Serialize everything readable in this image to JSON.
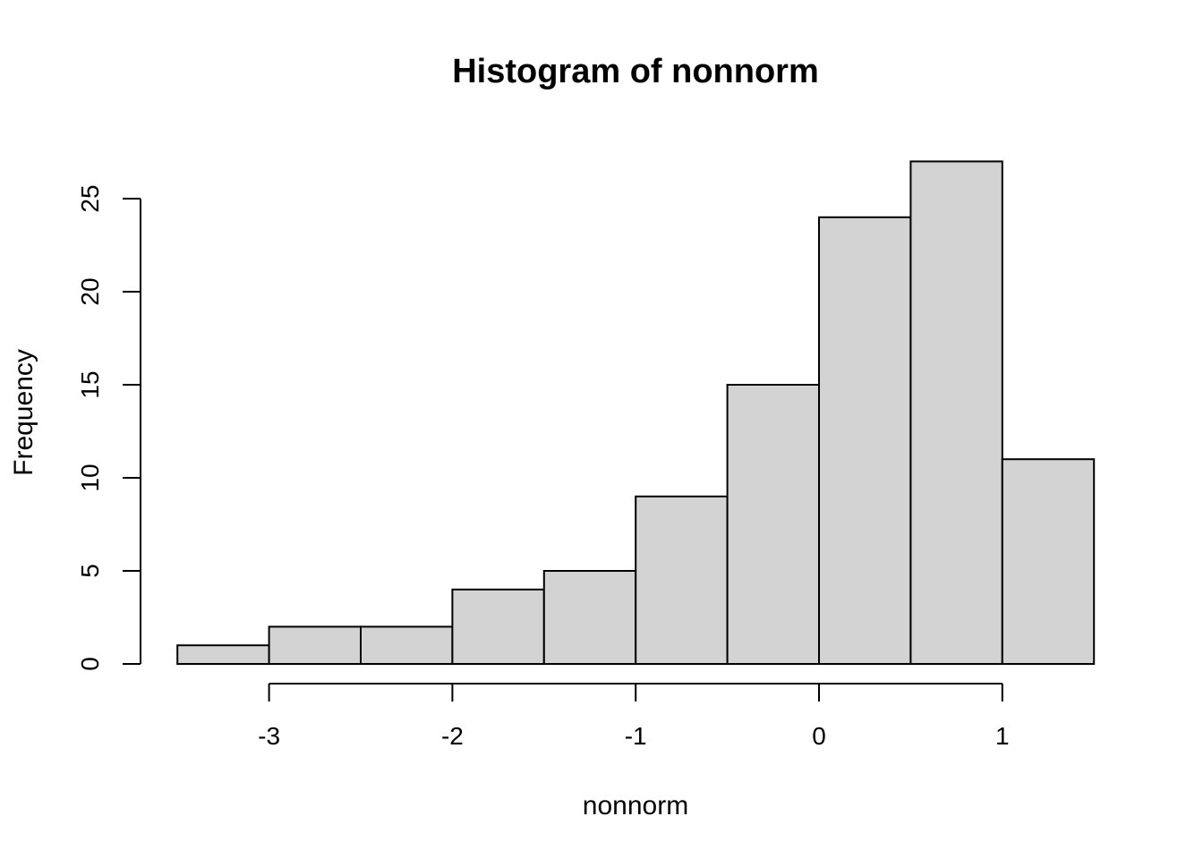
{
  "chart_data": {
    "type": "bar",
    "subtype": "histogram",
    "title": "Histogram of nonnorm",
    "xlabel": "nonnorm",
    "ylabel": "Frequency",
    "bins": [
      {
        "x0": -3.5,
        "x1": -3.0,
        "count": 1
      },
      {
        "x0": -3.0,
        "x1": -2.5,
        "count": 2
      },
      {
        "x0": -2.5,
        "x1": -2.0,
        "count": 2
      },
      {
        "x0": -2.0,
        "x1": -1.5,
        "count": 4
      },
      {
        "x0": -1.5,
        "x1": -1.0,
        "count": 5
      },
      {
        "x0": -1.0,
        "x1": -0.5,
        "count": 9
      },
      {
        "x0": -0.5,
        "x1": 0.0,
        "count": 15
      },
      {
        "x0": 0.0,
        "x1": 0.5,
        "count": 24
      },
      {
        "x0": 0.5,
        "x1": 1.0,
        "count": 27
      },
      {
        "x0": 1.0,
        "x1": 1.5,
        "count": 11
      }
    ],
    "xticks": [
      -3,
      -2,
      -1,
      0,
      1
    ],
    "xtick_labels": [
      "-3",
      "-2",
      "-1",
      "0",
      "1"
    ],
    "yticks": [
      0,
      5,
      10,
      15,
      20,
      25
    ],
    "ytick_labels": [
      "0",
      "5",
      "10",
      "15",
      "20",
      "25"
    ],
    "bar_color": "#d3d3d3",
    "edge_color": "#000000",
    "grid": false
  }
}
